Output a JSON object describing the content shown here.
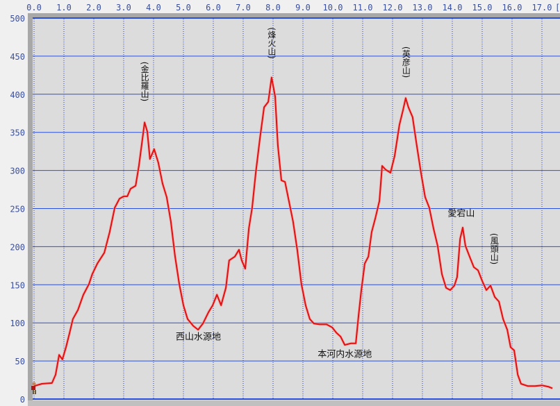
{
  "chart_data": {
    "type": "line",
    "title": "",
    "xlabel": "",
    "x_unit_label": "[",
    "ylabel": "",
    "xlim": [
      0,
      17.35
    ],
    "ylim": [
      0,
      500
    ],
    "x_ticks": [
      "0.0",
      "1.0",
      "2.0",
      "3.0",
      "4.0",
      "5.0",
      "6.0",
      "7.0",
      "8.0",
      "9.0",
      "10.0",
      "11.0",
      "12.0",
      "13.0",
      "14.0",
      "15.0",
      "16.0",
      "17.0"
    ],
    "y_ticks": [
      "0",
      "50",
      "100",
      "150",
      "200",
      "250",
      "300",
      "350",
      "400",
      "450",
      "500"
    ],
    "x_axis_position": "top",
    "grid": {
      "x": "dotted",
      "y": "solid"
    },
    "colors": {
      "line": "#e01010",
      "grid_y": "#2a4fd8",
      "grid_x": "#2a3fb0",
      "plot_bg": "#dcdcdc",
      "tick_text": "#3a4f9e"
    },
    "start_marker_icon": "hiker-icon",
    "series": [
      {
        "x": [
          0,
          0.26,
          0.6,
          0.72,
          0.84,
          0.95,
          1.07,
          1.19,
          1.3,
          1.47,
          1.65,
          1.84,
          1.95,
          2.12,
          2.35,
          2.53,
          2.7,
          2.86,
          3.0,
          3.12,
          3.23,
          3.4,
          3.51,
          3.63,
          3.7,
          3.79,
          3.88,
          4.02,
          4.16,
          4.3,
          4.44,
          4.58,
          4.72,
          4.86,
          5.0,
          5.14,
          5.33,
          5.49,
          5.65,
          5.84,
          5.98,
          6.12,
          6.26,
          6.42,
          6.53,
          6.72,
          6.86,
          6.95,
          7.07,
          7.19,
          7.3,
          7.42,
          7.56,
          7.7,
          7.84,
          7.95,
          8.07,
          8.16,
          8.28,
          8.4,
          8.53,
          8.67,
          8.81,
          8.95,
          9.09,
          9.23,
          9.37,
          9.56,
          9.79,
          9.98,
          10.12,
          10.26,
          10.4,
          10.6,
          10.77,
          10.86,
          10.95,
          11.07,
          11.19,
          11.3,
          11.42,
          11.56,
          11.65,
          11.77,
          11.93,
          12.07,
          12.23,
          12.35,
          12.44,
          12.53,
          12.67,
          12.81,
          12.95,
          13.09,
          13.23,
          13.37,
          13.51,
          13.65,
          13.79,
          13.93,
          14.07,
          14.16,
          14.26,
          14.35,
          14.44,
          14.58,
          14.72,
          14.86,
          15.0,
          15.14,
          15.28,
          15.42,
          15.56,
          15.7,
          15.84,
          15.95,
          16.07,
          16.19,
          16.3,
          16.53,
          16.77,
          17.0,
          17.23,
          17.35
        ],
        "y": [
          17,
          20,
          21,
          32,
          58,
          52,
          68,
          87,
          105,
          117,
          137,
          151,
          164,
          178,
          192,
          219,
          251,
          263,
          266,
          266,
          276,
          280,
          306,
          342,
          363,
          351,
          315,
          328,
          310,
          283,
          265,
          233,
          187,
          151,
          123,
          105,
          96,
          91,
          99,
          114,
          123,
          137,
          123,
          146,
          182,
          187,
          196,
          182,
          171,
          224,
          251,
          297,
          342,
          383,
          390,
          422,
          397,
          333,
          287,
          285,
          260,
          233,
          196,
          151,
          123,
          105,
          99,
          98,
          98,
          94,
          87,
          82,
          71,
          73,
          73,
          109,
          141,
          178,
          187,
          219,
          237,
          260,
          306,
          301,
          297,
          319,
          360,
          379,
          395,
          383,
          370,
          333,
          297,
          265,
          251,
          224,
          201,
          164,
          146,
          143,
          149,
          160,
          210,
          225,
          201,
          187,
          173,
          169,
          155,
          143,
          149,
          134,
          128,
          105,
          91,
          68,
          64,
          32,
          20,
          17,
          17,
          18,
          16,
          14
        ]
      }
    ],
    "annotations": [
      {
        "text": "(金比羅山)",
        "x": 3.7,
        "y": 400,
        "orientation": "vertical"
      },
      {
        "text": "(烽火山)",
        "x": 7.95,
        "y": 445,
        "orientation": "vertical"
      },
      {
        "text": "(英彦山)",
        "x": 12.45,
        "y": 420,
        "orientation": "vertical"
      },
      {
        "text": "愛宕山",
        "x": 14.3,
        "y": 240,
        "orientation": "horizontal"
      },
      {
        "text": "(風頭山)",
        "x": 15.4,
        "y": 175,
        "orientation": "vertical"
      },
      {
        "text": "西山水源地",
        "x": 5.5,
        "y": 78,
        "orientation": "horizontal"
      },
      {
        "text": "本河内水源地",
        "x": 10.4,
        "y": 55,
        "orientation": "horizontal"
      }
    ]
  }
}
